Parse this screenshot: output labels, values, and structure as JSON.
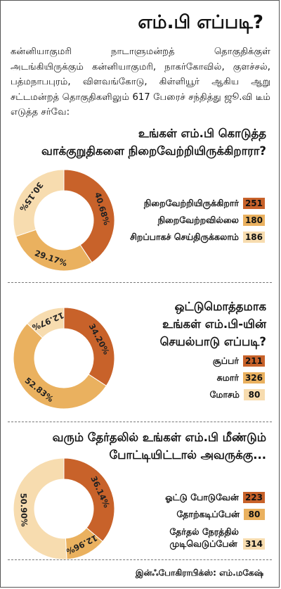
{
  "title": "எம்.பி எப்படி?",
  "intro": "கன்னியாகுமரி நாடாளுமன்றத் தொகுதிக்குள் அடங்கியிருக்கும் கன்னியாகுமரி, நாகர்கோவில், குளச்சல், பத்மநாபபுரம், விளவங்கோடு, கிள்ளியூர் ஆகிய ஆறு சட்டமன்றத் தொகுதிகளிலும் 617 பேரைச் சந்தித்து ஜூ.வி டீம் எடுத்த சர்வே:",
  "colors": {
    "dark": "#c8622a",
    "mid": "#eab15f",
    "light": "#f7dcaf"
  },
  "footer": "இன்ஃபோகிராபிக்ஸ்: எம்.மகேஷ்",
  "chart_data": [
    {
      "type": "pie",
      "title": "உங்கள் எம்.பி கொடுத்த வாக்குறுதிகளை நிறைவேற்றியிருக்கிறாரா?",
      "title_lines": [
        "உங்கள் எம்.பி கொடுத்த",
        "வாக்குறுதிகளை நிறைவேற்றியிருக்கிறாரா?"
      ],
      "categories": [
        "நிறைவேற்றியிருக்கிறார்",
        "நிறைவேற்றவில்லை",
        "சிறப்பாகச் செய்திருக்கலாம்"
      ],
      "values": [
        251,
        180,
        186
      ],
      "percent_labels": [
        "40.68%",
        "29.17%",
        "30.15%"
      ]
    },
    {
      "type": "pie",
      "title": "ஒட்டுமொத்தமாக உங்கள் எம்.பி-யின் செயல்பாடு எப்படி?",
      "title_lines": [
        "ஒட்டுமொத்தமாக",
        "உங்கள் எம்.பி-யின்",
        "செயல்பாடு எப்படி?"
      ],
      "categories": [
        "சூப்பர்",
        "சுமார்",
        "மோசம்"
      ],
      "values": [
        211,
        326,
        80
      ],
      "percent_labels": [
        "34.20%",
        "52.83%",
        "12.97%"
      ]
    },
    {
      "type": "pie",
      "title": "வரும் தேர்தலில் உங்கள் எம்.பி மீண்டும் போட்டியிட்டால் அவருக்கு...",
      "title_lines": [
        "வரும் தேர்தலில் உங்கள் எம்.பி மீண்டும்",
        "போட்டியிட்டால் அவருக்கு..."
      ],
      "categories": [
        "ஓட்டு போடுவேன்",
        "தோற்கடிப்பேன்",
        "தேர்தல் நேரத்தில் முடிவெடுப்பேன்"
      ],
      "category_lines": [
        [
          "ஓட்டு போடுவேன்"
        ],
        [
          "தோற்கடிப்பேன்"
        ],
        [
          "தேர்தல் நேரத்தில்",
          "முடிவெடுப்பேன்"
        ]
      ],
      "values": [
        223,
        80,
        314
      ],
      "percent_labels": [
        "36.14%",
        "12.96%",
        "50.90%"
      ]
    }
  ]
}
